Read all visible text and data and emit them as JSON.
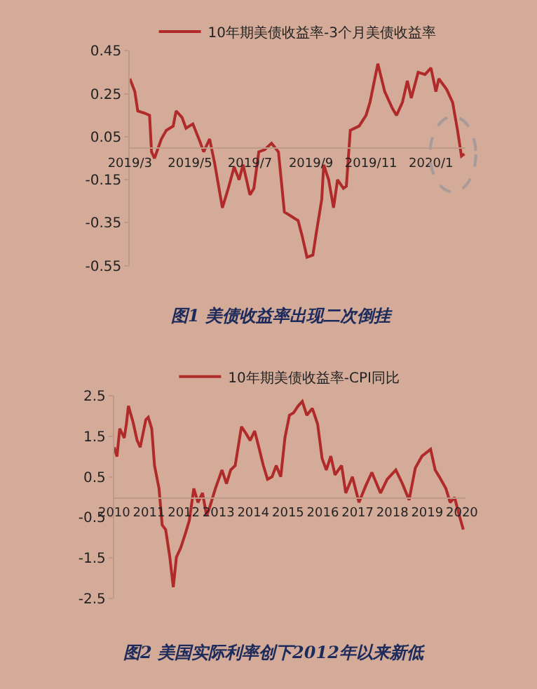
{
  "chart_data": [
    {
      "type": "line",
      "legend": "top",
      "annotations": [
        "图1 美债收益率出现二次倒挂"
      ],
      "x": [
        "2019-03-01",
        "2019-03-06",
        "2019-03-09",
        "2019-03-16",
        "2019-03-21",
        "2019-03-23",
        "2019-03-26",
        "2019-04-02",
        "2019-04-07",
        "2019-04-14",
        "2019-04-17",
        "2019-04-23",
        "2019-04-27",
        "2019-05-04",
        "2019-05-11",
        "2019-05-15",
        "2019-05-21",
        "2019-05-26",
        "2019-06-03",
        "2019-06-09",
        "2019-06-15",
        "2019-06-20",
        "2019-06-24",
        "2019-07-01",
        "2019-07-05",
        "2019-07-10",
        "2019-07-16",
        "2019-07-23",
        "2019-07-30",
        "2019-08-05",
        "2019-08-12",
        "2019-08-19",
        "2019-08-23",
        "2019-08-28",
        "2019-09-03",
        "2019-09-06",
        "2019-09-12",
        "2019-09-14",
        "2019-09-19",
        "2019-09-24",
        "2019-09-28",
        "2019-10-04",
        "2019-10-07",
        "2019-10-11",
        "2019-10-20",
        "2019-10-27",
        "2019-10-31",
        "2019-11-08",
        "2019-11-15",
        "2019-11-23",
        "2019-11-27",
        "2019-12-03",
        "2019-12-08",
        "2019-12-12",
        "2019-12-19",
        "2019-12-26",
        "2020-01-01",
        "2020-01-06",
        "2020-01-09",
        "2020-01-17",
        "2020-01-23",
        "2020-01-28",
        "2020-02-01",
        "2020-02-04"
      ],
      "series": [
        {
          "name": "10年期美债收益率-3个月美债收益率",
          "color": "#b02a2a",
          "values": [
            0.32,
            0.26,
            0.17,
            0.16,
            0.15,
            -0.02,
            -0.05,
            0.04,
            0.08,
            0.1,
            0.17,
            0.14,
            0.09,
            0.11,
            0.03,
            -0.02,
            0.04,
            -0.07,
            -0.28,
            -0.19,
            -0.09,
            -0.15,
            -0.08,
            -0.22,
            -0.19,
            -0.02,
            -0.01,
            0.02,
            -0.02,
            -0.3,
            -0.32,
            -0.34,
            -0.41,
            -0.51,
            -0.5,
            -0.41,
            -0.24,
            -0.08,
            -0.15,
            -0.28,
            -0.15,
            -0.19,
            -0.18,
            0.08,
            0.1,
            0.15,
            0.21,
            0.39,
            0.26,
            0.18,
            0.15,
            0.21,
            0.31,
            0.23,
            0.35,
            0.34,
            0.37,
            0.26,
            0.32,
            0.27,
            0.21,
            0.08,
            -0.04,
            -0.03
          ]
        }
      ],
      "xlim": [
        "2019-03-01",
        "2020-02-05"
      ],
      "xticks": [
        {
          "value": "2019-03-01",
          "label": "2019/3"
        },
        {
          "value": "2019-05-01",
          "label": "2019/5"
        },
        {
          "value": "2019-07-01",
          "label": "2019/7"
        },
        {
          "value": "2019-09-01",
          "label": "2019/9"
        },
        {
          "value": "2019-11-01",
          "label": "2019/11"
        },
        {
          "value": "2020-01-01",
          "label": "2020/1"
        }
      ],
      "ylim": [
        -0.55,
        0.45
      ],
      "yticks": [
        -0.55,
        -0.35,
        -0.15,
        0.05,
        0.25,
        0.45
      ]
    },
    {
      "type": "line",
      "legend": "top",
      "annotations": [
        "图2 美国实际利率创下2012年以来新低"
      ],
      "x": [
        2010.0,
        2010.08,
        2010.16,
        2010.29,
        2010.35,
        2010.41,
        2010.54,
        2010.66,
        2010.75,
        2010.91,
        2010.98,
        2011.08,
        2011.16,
        2011.29,
        2011.38,
        2011.48,
        2011.6,
        2011.7,
        2011.79,
        2011.91,
        2012.04,
        2012.16,
        2012.29,
        2012.41,
        2012.54,
        2012.66,
        2012.75,
        2012.91,
        2013.1,
        2013.23,
        2013.35,
        2013.48,
        2013.66,
        2013.79,
        2013.91,
        2014.04,
        2014.16,
        2014.29,
        2014.41,
        2014.54,
        2014.66,
        2014.79,
        2014.91,
        2015.04,
        2015.16,
        2015.29,
        2015.41,
        2015.54,
        2015.7,
        2015.85,
        2015.98,
        2016.1,
        2016.23,
        2016.35,
        2016.54,
        2016.66,
        2016.85,
        2017.04,
        2017.23,
        2017.41,
        2017.66,
        2017.85,
        2018.1,
        2018.29,
        2018.48,
        2018.66,
        2018.85,
        2019.1,
        2019.23,
        2019.35,
        2019.54,
        2019.66,
        2019.79,
        2019.91,
        2020.04
      ],
      "series": [
        {
          "name": "10年期美债收益率-CPI同比",
          "color": "#b02a2a",
          "values": [
            1.23,
            1.0,
            1.69,
            1.46,
            1.8,
            2.25,
            1.86,
            1.4,
            1.23,
            1.91,
            1.97,
            1.69,
            0.78,
            0.21,
            -0.69,
            -0.8,
            -1.48,
            -2.22,
            -1.48,
            -1.26,
            -0.92,
            -0.58,
            0.21,
            -0.13,
            0.1,
            -0.46,
            -0.24,
            0.21,
            0.67,
            0.33,
            0.67,
            0.78,
            1.74,
            1.57,
            1.4,
            1.63,
            1.23,
            0.78,
            0.44,
            0.5,
            0.78,
            0.5,
            1.46,
            2.02,
            2.08,
            2.25,
            2.36,
            2.02,
            2.19,
            1.8,
            0.95,
            0.67,
            1.01,
            0.55,
            0.78,
            0.1,
            0.5,
            -0.13,
            0.27,
            0.61,
            0.1,
            0.44,
            0.67,
            0.33,
            -0.07,
            0.72,
            1.01,
            1.18,
            0.67,
            0.5,
            0.21,
            -0.13,
            -0.01,
            -0.41,
            -0.8
          ]
        }
      ],
      "xlim": [
        2010,
        2020.1
      ],
      "xticks": [
        2010,
        2011,
        2012,
        2013,
        2014,
        2015,
        2016,
        2017,
        2018,
        2019,
        2020
      ],
      "ylim": [
        -2.5,
        2.5
      ],
      "yticks": [
        -2.5,
        -1.5,
        -0.5,
        0.5,
        1.5,
        2.5
      ]
    }
  ]
}
